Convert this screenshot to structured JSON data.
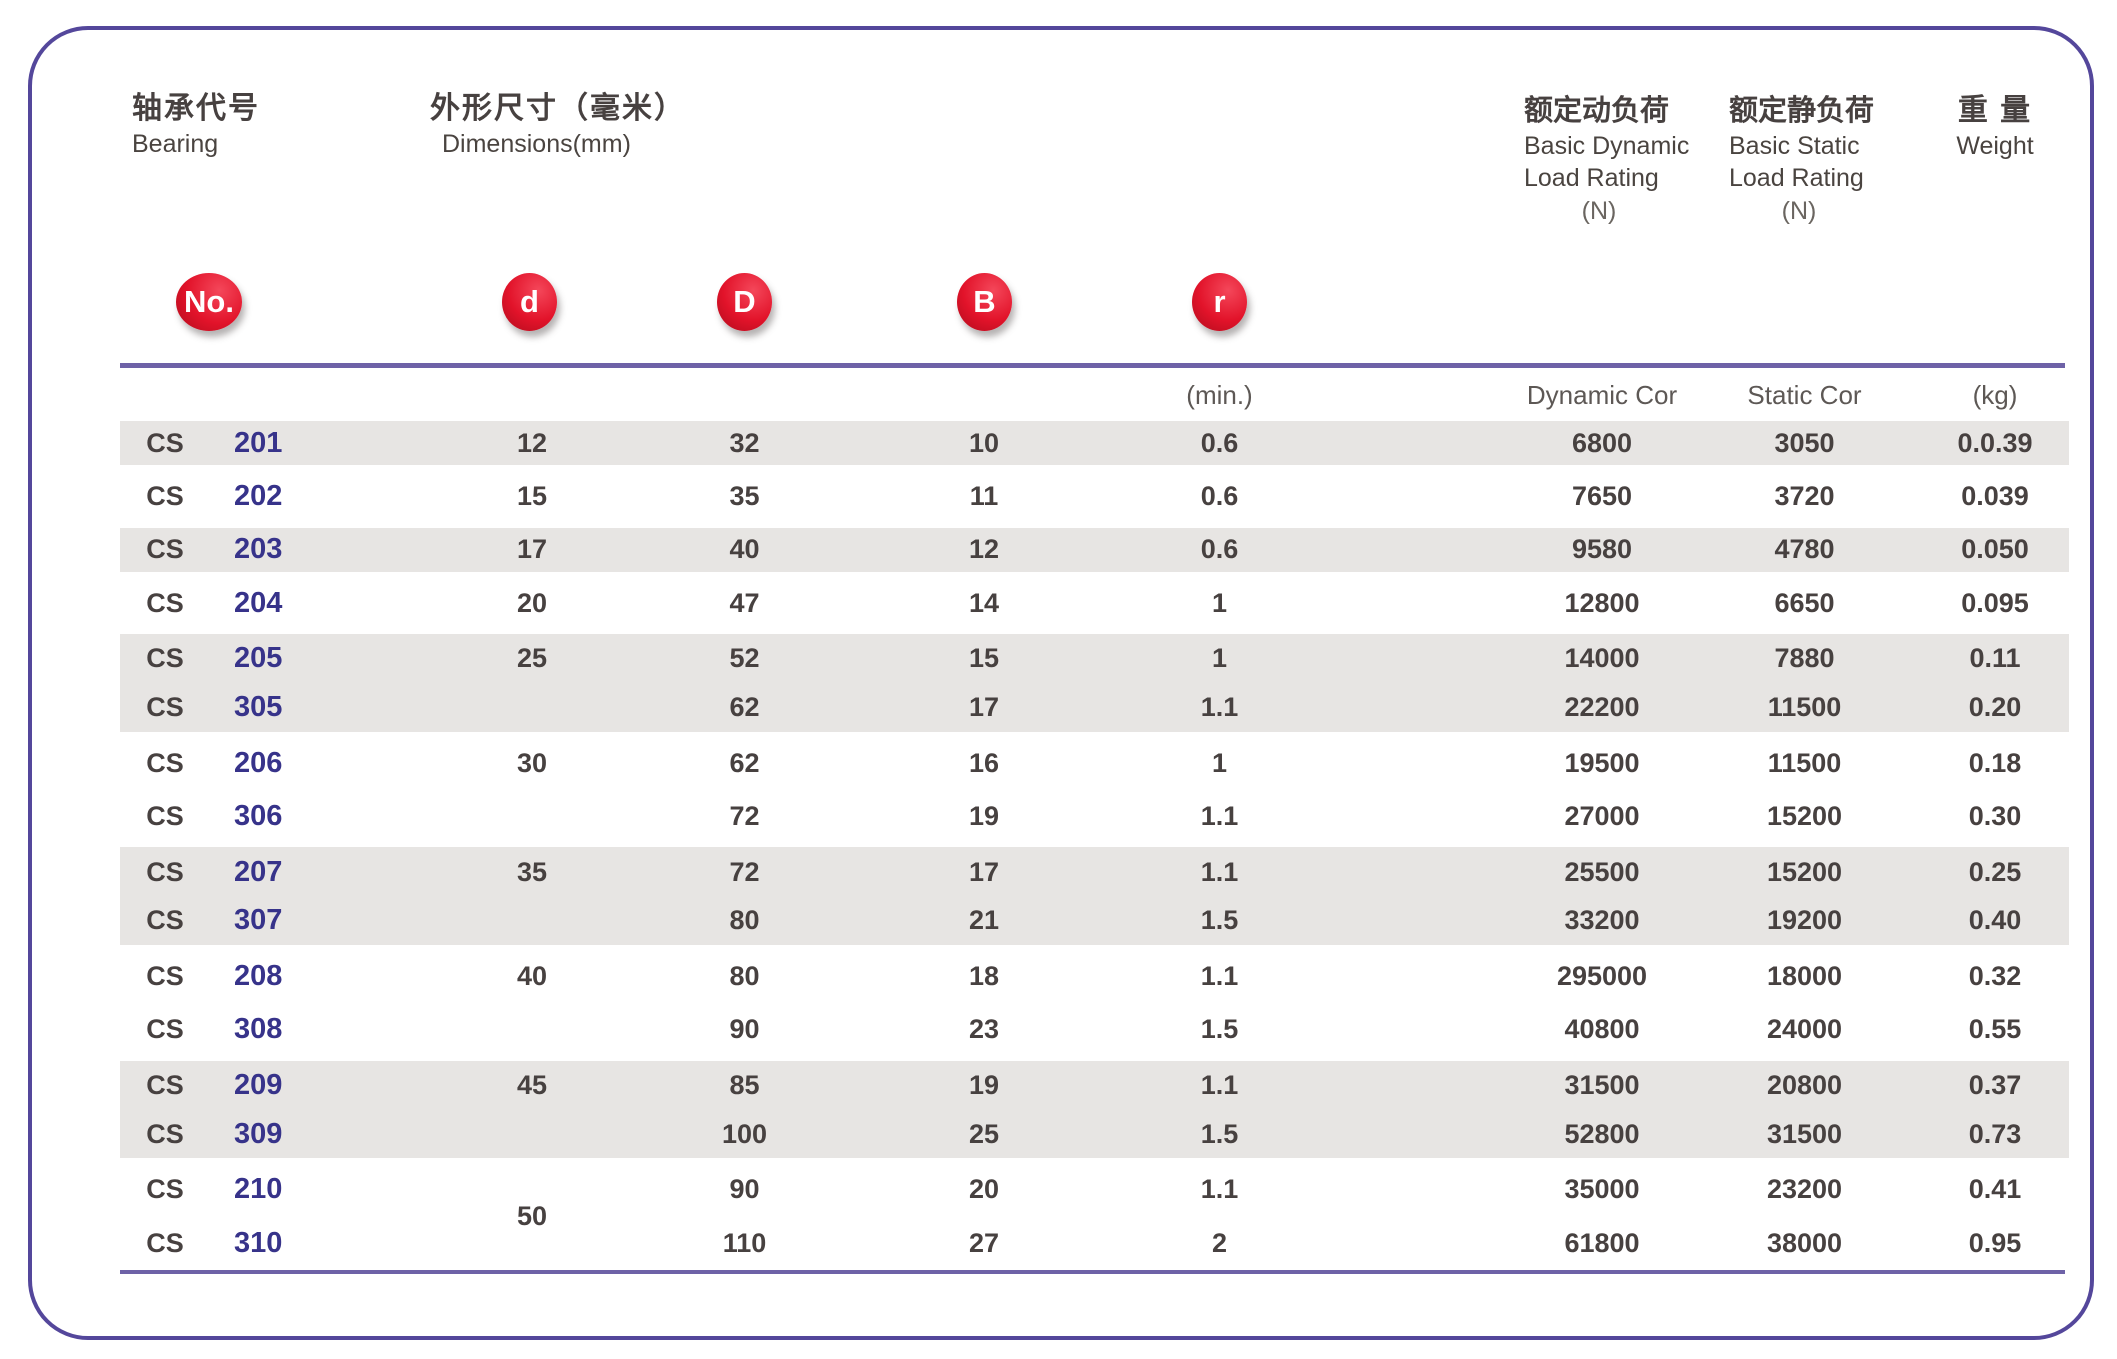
{
  "header": {
    "bearing_zh": "轴承代号",
    "bearing_en": "Bearing",
    "dims_zh": "外形尺寸（毫米）",
    "dims_en": "Dimensions(mm)",
    "dynamic_zh": "额定动负荷",
    "dynamic_en1": "Basic Dynamic",
    "dynamic_en2": "Load Rating",
    "dynamic_unit": "(N)",
    "static_zh": "额定静负荷",
    "static_en1": "Basic Static",
    "static_en2": "Load Rating",
    "static_unit": "(N)",
    "weight_zh": "重 量",
    "weight_en": "Weight"
  },
  "badges": {
    "no": "No.",
    "d": "d",
    "D": "D",
    "B": "B",
    "r": "r"
  },
  "subheader": {
    "r_min": "(min.)",
    "dynamic": "Dynamic Cor",
    "static": "Static Cor",
    "kg": "(kg)"
  },
  "d_spanned_value": "50",
  "table": {
    "rows": [
      {
        "prefix": "CS",
        "no": "201",
        "d": "12",
        "D": "32",
        "B": "10",
        "r": "0.6",
        "dyn": "6800",
        "stat": "3050",
        "wt": "0.0.39",
        "shade": "shade shade-start shade-end"
      },
      {
        "prefix": "CS",
        "no": "202",
        "d": "15",
        "D": "35",
        "B": "11",
        "r": "0.6",
        "dyn": "7650",
        "stat": "3720",
        "wt": "0.039",
        "shade": ""
      },
      {
        "prefix": "CS",
        "no": "203",
        "d": "17",
        "D": "40",
        "B": "12",
        "r": "0.6",
        "dyn": "9580",
        "stat": "4780",
        "wt": "0.050",
        "shade": "shade shade-start shade-end"
      },
      {
        "prefix": "CS",
        "no": "204",
        "d": "20",
        "D": "47",
        "B": "14",
        "r": "1",
        "dyn": "12800",
        "stat": "6650",
        "wt": "0.095",
        "shade": ""
      },
      {
        "prefix": "CS",
        "no": "205",
        "d": "25",
        "D": "52",
        "B": "15",
        "r": "1",
        "dyn": "14000",
        "stat": "7880",
        "wt": "0.11",
        "shade": "shade shade-start"
      },
      {
        "prefix": "CS",
        "no": "305",
        "d": "",
        "D": "62",
        "B": "17",
        "r": "1.1",
        "dyn": "22200",
        "stat": "11500",
        "wt": "0.20",
        "shade": "shade shade-end"
      },
      {
        "prefix": "CS",
        "no": "206",
        "d": "30",
        "D": "62",
        "B": "16",
        "r": "1",
        "dyn": "19500",
        "stat": "11500",
        "wt": "0.18",
        "shade": ""
      },
      {
        "prefix": "CS",
        "no": "306",
        "d": "",
        "D": "72",
        "B": "19",
        "r": "1.1",
        "dyn": "27000",
        "stat": "15200",
        "wt": "0.30",
        "shade": ""
      },
      {
        "prefix": "CS",
        "no": "207",
        "d": "35",
        "D": "72",
        "B": "17",
        "r": "1.1",
        "dyn": "25500",
        "stat": "15200",
        "wt": "0.25",
        "shade": "shade shade-start"
      },
      {
        "prefix": "CS",
        "no": "307",
        "d": "",
        "D": "80",
        "B": "21",
        "r": "1.5",
        "dyn": "33200",
        "stat": "19200",
        "wt": "0.40",
        "shade": "shade shade-end"
      },
      {
        "prefix": "CS",
        "no": "208",
        "d": "40",
        "D": "80",
        "B": "18",
        "r": "1.1",
        "dyn": "295000",
        "stat": "18000",
        "wt": "0.32",
        "shade": ""
      },
      {
        "prefix": "CS",
        "no": "308",
        "d": "",
        "D": "90",
        "B": "23",
        "r": "1.5",
        "dyn": "40800",
        "stat": "24000",
        "wt": "0.55",
        "shade": ""
      },
      {
        "prefix": "CS",
        "no": "209",
        "d": "45",
        "D": "85",
        "B": "19",
        "r": "1.1",
        "dyn": "31500",
        "stat": "20800",
        "wt": "0.37",
        "shade": "shade shade-start"
      },
      {
        "prefix": "CS",
        "no": "309",
        "d": "",
        "D": "100",
        "B": "25",
        "r": "1.5",
        "dyn": "52800",
        "stat": "31500",
        "wt": "0.73",
        "shade": "shade shade-end"
      },
      {
        "prefix": "CS",
        "no": "210",
        "d": "",
        "D": "90",
        "B": "20",
        "r": "1.1",
        "dyn": "35000",
        "stat": "23200",
        "wt": "0.41",
        "shade": ""
      },
      {
        "prefix": "CS",
        "no": "310",
        "d": "",
        "D": "110",
        "B": "27",
        "r": "2",
        "dyn": "61800",
        "stat": "38000",
        "wt": "0.95",
        "shade": ""
      }
    ]
  },
  "colors": {
    "card_border": "#54479b",
    "rule_purple": "#6e62a7",
    "row_shade": "#e7e5e3",
    "text_dark": "#474140",
    "text_navy": "#37338a",
    "badge_red": "#e2132a"
  }
}
